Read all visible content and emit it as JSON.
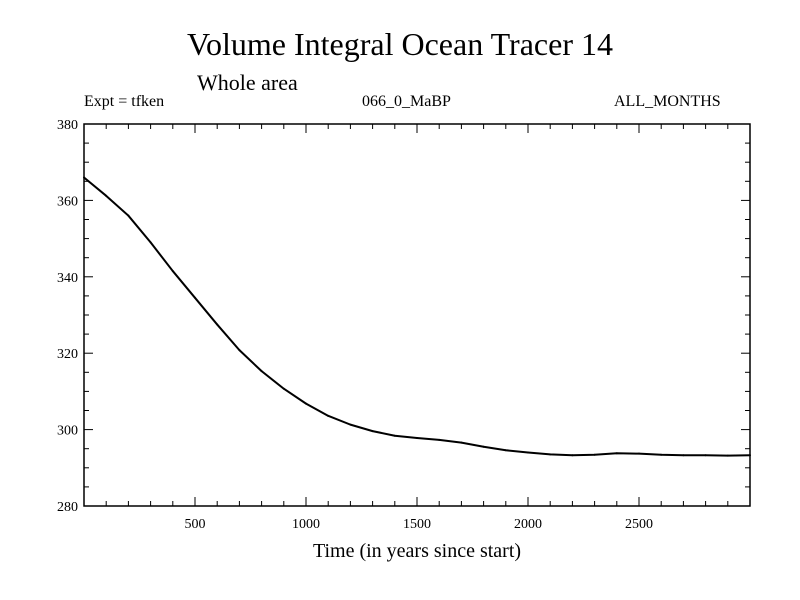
{
  "chart_data": {
    "type": "line",
    "title": "Volume Integral Ocean Tracer 14",
    "subtitle": "Whole area",
    "annotations": {
      "left": "Expt = tfken",
      "center": "066_0_MaBP",
      "right": "ALL_MONTHS"
    },
    "xlabel": "Time (in years since start)",
    "ylabel": "",
    "xlim": [
      0,
      3000
    ],
    "ylim": [
      280,
      380
    ],
    "xticks": [
      500,
      1000,
      1500,
      2000,
      2500
    ],
    "yticks": [
      280,
      300,
      320,
      340,
      360,
      380
    ],
    "grid": false,
    "series": [
      {
        "color": "#000000",
        "x": [
          0,
          100,
          200,
          300,
          400,
          500,
          600,
          700,
          800,
          900,
          1000,
          1100,
          1200,
          1300,
          1400,
          1500,
          1600,
          1700,
          1800,
          1900,
          2000,
          2100,
          2200,
          2300,
          2400,
          2500,
          2600,
          2700,
          2800,
          2900,
          3000
        ],
        "y": [
          366.0,
          361.2,
          356.0,
          349.0,
          341.5,
          334.5,
          327.5,
          320.8,
          315.3,
          310.7,
          306.8,
          303.6,
          301.3,
          299.6,
          298.4,
          297.8,
          297.3,
          296.6,
          295.5,
          294.6,
          294.0,
          293.5,
          293.3,
          293.4,
          293.8,
          293.7,
          293.4,
          293.3,
          293.3,
          293.2,
          293.3
        ]
      }
    ]
  }
}
